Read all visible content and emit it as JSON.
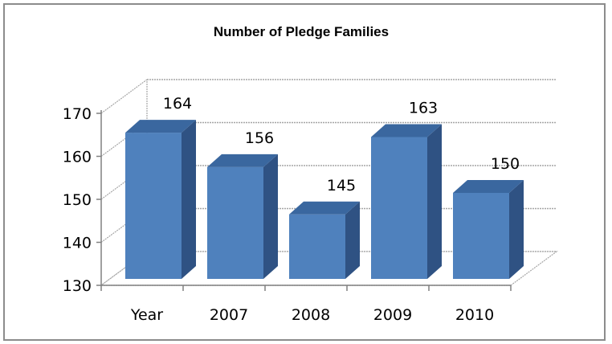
{
  "chart_data": {
    "type": "bar",
    "title": "Number of Pledge Families",
    "categories": [
      "Year",
      "2007",
      "2008",
      "2009",
      "2010"
    ],
    "values": [
      164,
      156,
      145,
      163,
      150
    ],
    "data_labels": [
      "164",
      "156",
      "145",
      "163",
      "150"
    ],
    "ylim": [
      130,
      170
    ],
    "yticks": [
      130,
      140,
      150,
      160,
      170
    ],
    "ytick_labels": [
      "130",
      "140",
      "150",
      "160",
      "170"
    ],
    "grid": true,
    "bar_color": "#4f81bd",
    "bar_top_color": "#3a679f",
    "bar_side_color": "#2f5283"
  }
}
